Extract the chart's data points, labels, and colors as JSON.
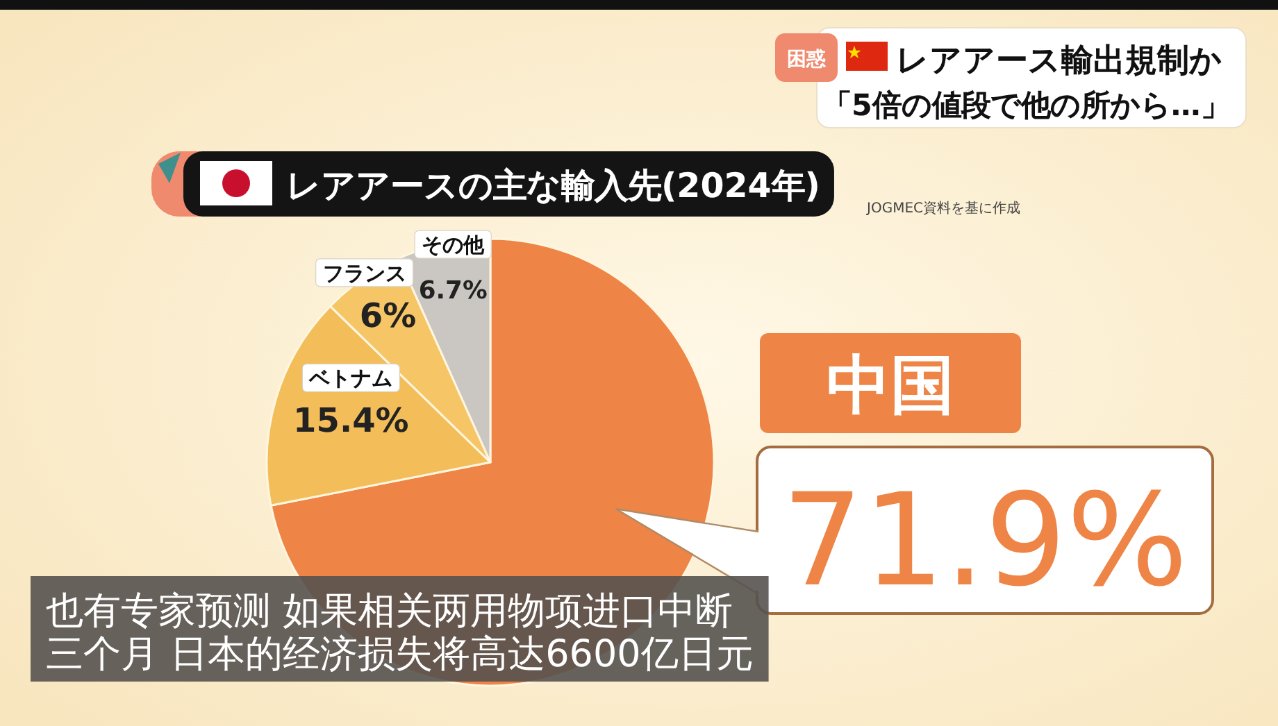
{
  "chart_data": {
    "type": "pie",
    "title": "レアアースの主な輸入先(2024年)",
    "categories": [
      "中国",
      "ベトナム",
      "フランス",
      "その他"
    ],
    "values": [
      71.9,
      15.4,
      6,
      6.7
    ],
    "colors": [
      "#ee8445",
      "#f3bd59",
      "#f5c566",
      "#cac7c2"
    ],
    "value_labels": [
      "71.9%",
      "15.4%",
      "6%",
      "6.7%"
    ],
    "annotations": [
      "JOGMEC資料を基に作成",
      "困惑",
      "レアアース輸出規制か",
      "「5倍の値段で他の所から…」",
      "也有专家预测 如果相关两用物项进口中断",
      "三个月 日本的经济损失将高达6600亿日元"
    ]
  }
}
